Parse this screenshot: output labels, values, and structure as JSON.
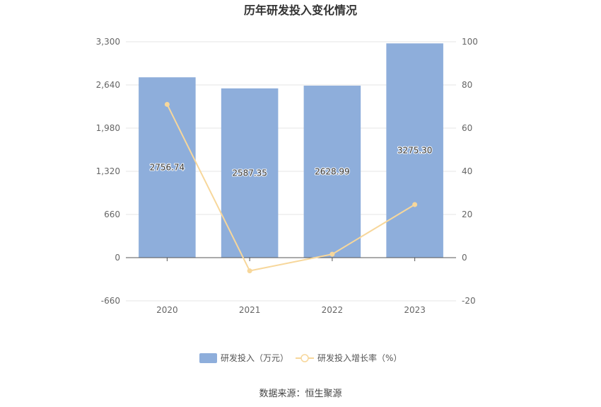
{
  "chart_data": {
    "type": "bar",
    "title": "历年研发投入变化情况",
    "categories": [
      "2020",
      "2021",
      "2022",
      "2023"
    ],
    "series": [
      {
        "name": "研发投入（万元）",
        "type": "bar",
        "axis": "left",
        "color": "#8eaedb",
        "values": [
          2756.74,
          2587.35,
          2628.99,
          3275.3
        ],
        "labels": [
          "2756.74",
          "2587.35",
          "2628.99",
          "3275.30"
        ]
      },
      {
        "name": "研发投入增长率（%）",
        "type": "line",
        "axis": "right",
        "color": "#f7d79b",
        "values": [
          71.0,
          -6.1,
          1.6,
          24.6
        ]
      }
    ],
    "y_left": {
      "min": -660,
      "max": 3300,
      "ticks": [
        -660,
        0,
        660,
        1320,
        1980,
        2640,
        3300
      ],
      "tick_labels": [
        "-660",
        "0",
        "660",
        "1,320",
        "1,980",
        "2,640",
        "3,300"
      ]
    },
    "y_right": {
      "min": -20,
      "max": 100,
      "ticks": [
        -20,
        0,
        20,
        40,
        60,
        80,
        100
      ],
      "tick_labels": [
        "-20",
        "0",
        "20",
        "40",
        "60",
        "80",
        "100"
      ]
    },
    "grid": true,
    "legend_position": "bottom"
  },
  "source_text": "数据来源：恒生聚源"
}
